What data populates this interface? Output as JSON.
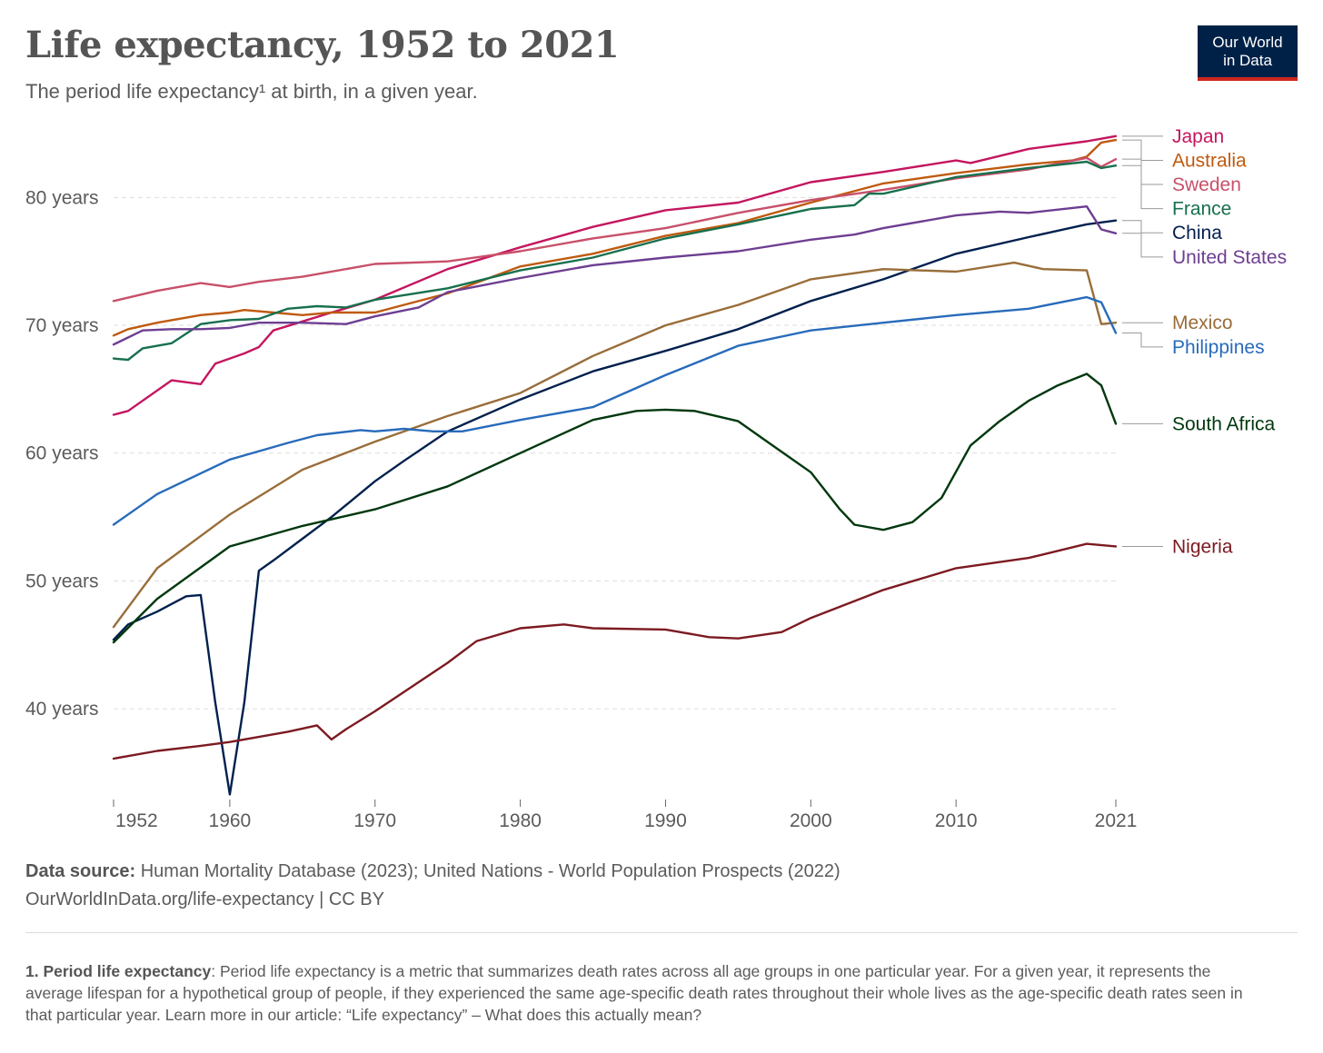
{
  "header": {
    "title": "Life expectancy, 1952 to 2021",
    "subtitle": "The period life expectancy¹ at birth, in a given year.",
    "logo_line1": "Our World",
    "logo_line2": "in Data"
  },
  "footer": {
    "source_label": "Data source:",
    "source_text": " Human Mortality Database (2023); United Nations - World Population Prospects (2022)",
    "url_text": "OurWorldInData.org/life-expectancy | CC BY",
    "footnote_label": "1. Period life expectancy",
    "footnote_text": ": Period life expectancy is a metric that summarizes death rates across all age groups in one particular year. For a given year, it represents the average lifespan for a hypothetical group of people, if they experienced the same age-specific death rates throughout their whole lives as the age-specific death rates seen in that particular year. Learn more in our article: “Life expectancy” – What does this actually mean?"
  },
  "colors": {
    "brand": "#002147",
    "brand_accent": "#ce261e",
    "grid": "#dddddd",
    "text": "#5b5b5b"
  },
  "chart_data": {
    "type": "line",
    "title": "Life expectancy, 1952 to 2021",
    "subtitle": "The period life expectancy¹ at birth, in a given year.",
    "xlim": [
      1952,
      2021
    ],
    "ylim": [
      32.9,
      85.5
    ],
    "x_ticks": [
      1952,
      1960,
      1970,
      1980,
      1990,
      2000,
      2010,
      2021
    ],
    "y_ticks": [
      {
        "value": 40,
        "label": "40 years"
      },
      {
        "value": 50,
        "label": "50 years"
      },
      {
        "value": 60,
        "label": "60 years"
      },
      {
        "value": 70,
        "label": "70 years"
      },
      {
        "value": 80,
        "label": "80 years"
      }
    ],
    "grid": "horizontal dashed",
    "legend": "line end labels (right)",
    "series": [
      {
        "name": "Japan",
        "color": "#c4165f",
        "points": [
          [
            1952,
            63
          ],
          [
            1953,
            63.3
          ],
          [
            1956,
            65.7
          ],
          [
            1958,
            65.4
          ],
          [
            1959,
            67
          ],
          [
            1961,
            67.8
          ],
          [
            1962,
            68.3
          ],
          [
            1963,
            69.6
          ],
          [
            1965,
            70.3
          ],
          [
            1967,
            71
          ],
          [
            1970,
            72
          ],
          [
            1975,
            74.4
          ],
          [
            1980,
            76.1
          ],
          [
            1985,
            77.7
          ],
          [
            1990,
            79
          ],
          [
            1995,
            79.6
          ],
          [
            2000,
            81.2
          ],
          [
            2005,
            82
          ],
          [
            2010,
            82.9
          ],
          [
            2011,
            82.7
          ],
          [
            2015,
            83.8
          ],
          [
            2019,
            84.4
          ],
          [
            2020,
            84.6
          ],
          [
            2021,
            84.8
          ]
        ]
      },
      {
        "name": "Australia",
        "color": "#bf5a0f",
        "points": [
          [
            1952,
            69.2
          ],
          [
            1953,
            69.7
          ],
          [
            1955,
            70.2
          ],
          [
            1958,
            70.8
          ],
          [
            1960,
            71
          ],
          [
            1961,
            71.2
          ],
          [
            1963,
            71
          ],
          [
            1965,
            70.8
          ],
          [
            1967,
            71
          ],
          [
            1970,
            71
          ],
          [
            1975,
            72.5
          ],
          [
            1980,
            74.6
          ],
          [
            1985,
            75.6
          ],
          [
            1990,
            77
          ],
          [
            1995,
            78
          ],
          [
            2000,
            79.6
          ],
          [
            2005,
            81.1
          ],
          [
            2010,
            81.9
          ],
          [
            2015,
            82.6
          ],
          [
            2018,
            82.9
          ],
          [
            2019,
            83.2
          ],
          [
            2020,
            84.3
          ],
          [
            2021,
            84.5
          ]
        ]
      },
      {
        "name": "Sweden",
        "color": "#c8506a",
        "points": [
          [
            1952,
            71.9
          ],
          [
            1955,
            72.7
          ],
          [
            1958,
            73.3
          ],
          [
            1960,
            73
          ],
          [
            1962,
            73.4
          ],
          [
            1965,
            73.8
          ],
          [
            1970,
            74.8
          ],
          [
            1975,
            75
          ],
          [
            1980,
            75.8
          ],
          [
            1985,
            76.8
          ],
          [
            1990,
            77.6
          ],
          [
            1995,
            78.8
          ],
          [
            2000,
            79.8
          ],
          [
            2005,
            80.6
          ],
          [
            2010,
            81.5
          ],
          [
            2015,
            82.2
          ],
          [
            2019,
            83.1
          ],
          [
            2020,
            82.4
          ],
          [
            2021,
            83
          ]
        ]
      },
      {
        "name": "France",
        "color": "#18704e",
        "points": [
          [
            1952,
            67.4
          ],
          [
            1953,
            67.3
          ],
          [
            1954,
            68.2
          ],
          [
            1956,
            68.6
          ],
          [
            1958,
            70.1
          ],
          [
            1960,
            70.4
          ],
          [
            1962,
            70.5
          ],
          [
            1964,
            71.3
          ],
          [
            1966,
            71.5
          ],
          [
            1968,
            71.4
          ],
          [
            1970,
            72
          ],
          [
            1975,
            72.9
          ],
          [
            1980,
            74.3
          ],
          [
            1985,
            75.3
          ],
          [
            1990,
            76.8
          ],
          [
            1995,
            77.9
          ],
          [
            2000,
            79.1
          ],
          [
            2003,
            79.4
          ],
          [
            2004,
            80.3
          ],
          [
            2005,
            80.3
          ],
          [
            2010,
            81.6
          ],
          [
            2015,
            82.3
          ],
          [
            2019,
            82.8
          ],
          [
            2020,
            82.3
          ],
          [
            2021,
            82.5
          ]
        ]
      },
      {
        "name": "China",
        "color": "#00204e",
        "points": [
          [
            1952,
            45.4
          ],
          [
            1953,
            46.6
          ],
          [
            1955,
            47.6
          ],
          [
            1957,
            48.8
          ],
          [
            1958,
            48.9
          ],
          [
            1959,
            40.5
          ],
          [
            1960,
            33.3
          ],
          [
            1961,
            40.5
          ],
          [
            1962,
            50.8
          ],
          [
            1963,
            51.6
          ],
          [
            1965,
            53.3
          ],
          [
            1967,
            55
          ],
          [
            1970,
            57.8
          ],
          [
            1972,
            59.4
          ],
          [
            1975,
            61.7
          ],
          [
            1980,
            64.2
          ],
          [
            1985,
            66.4
          ],
          [
            1990,
            68
          ],
          [
            1995,
            69.7
          ],
          [
            2000,
            71.9
          ],
          [
            2005,
            73.6
          ],
          [
            2010,
            75.6
          ],
          [
            2015,
            76.9
          ],
          [
            2019,
            77.9
          ],
          [
            2021,
            78.2
          ]
        ]
      },
      {
        "name": "United States",
        "color": "#6d3e91",
        "points": [
          [
            1952,
            68.5
          ],
          [
            1954,
            69.6
          ],
          [
            1956,
            69.7
          ],
          [
            1958,
            69.7
          ],
          [
            1960,
            69.8
          ],
          [
            1962,
            70.2
          ],
          [
            1965,
            70.2
          ],
          [
            1968,
            70.1
          ],
          [
            1970,
            70.7
          ],
          [
            1973,
            71.4
          ],
          [
            1975,
            72.6
          ],
          [
            1980,
            73.7
          ],
          [
            1985,
            74.7
          ],
          [
            1990,
            75.3
          ],
          [
            1995,
            75.8
          ],
          [
            2000,
            76.7
          ],
          [
            2003,
            77.1
          ],
          [
            2005,
            77.6
          ],
          [
            2010,
            78.6
          ],
          [
            2013,
            78.9
          ],
          [
            2015,
            78.8
          ],
          [
            2019,
            79.3
          ],
          [
            2020,
            77.5
          ],
          [
            2021,
            77.2
          ]
        ]
      },
      {
        "name": "Mexico",
        "color": "#996d39",
        "points": [
          [
            1952,
            46.4
          ],
          [
            1955,
            51
          ],
          [
            1960,
            55.2
          ],
          [
            1965,
            58.7
          ],
          [
            1970,
            60.9
          ],
          [
            1975,
            62.9
          ],
          [
            1980,
            64.7
          ],
          [
            1985,
            67.6
          ],
          [
            1990,
            70
          ],
          [
            1995,
            71.6
          ],
          [
            2000,
            73.6
          ],
          [
            2005,
            74.4
          ],
          [
            2010,
            74.2
          ],
          [
            2014,
            74.9
          ],
          [
            2016,
            74.4
          ],
          [
            2019,
            74.3
          ],
          [
            2020,
            70.1
          ],
          [
            2021,
            70.2
          ]
        ]
      },
      {
        "name": "Philippines",
        "color": "#286bbb",
        "points": [
          [
            1952,
            54.4
          ],
          [
            1955,
            56.8
          ],
          [
            1960,
            59.5
          ],
          [
            1964,
            60.8
          ],
          [
            1966,
            61.4
          ],
          [
            1969,
            61.8
          ],
          [
            1970,
            61.7
          ],
          [
            1972,
            61.9
          ],
          [
            1974,
            61.7
          ],
          [
            1976,
            61.7
          ],
          [
            1980,
            62.6
          ],
          [
            1985,
            63.6
          ],
          [
            1990,
            66.1
          ],
          [
            1995,
            68.4
          ],
          [
            2000,
            69.6
          ],
          [
            2005,
            70.2
          ],
          [
            2010,
            70.8
          ],
          [
            2015,
            71.3
          ],
          [
            2019,
            72.2
          ],
          [
            2020,
            71.8
          ],
          [
            2021,
            69.4
          ]
        ]
      },
      {
        "name": "South Africa",
        "color": "#00380e",
        "points": [
          [
            1952,
            45.2
          ],
          [
            1955,
            48.6
          ],
          [
            1960,
            52.7
          ],
          [
            1965,
            54.3
          ],
          [
            1970,
            55.6
          ],
          [
            1975,
            57.4
          ],
          [
            1980,
            60
          ],
          [
            1985,
            62.6
          ],
          [
            1988,
            63.3
          ],
          [
            1990,
            63.4
          ],
          [
            1992,
            63.3
          ],
          [
            1995,
            62.5
          ],
          [
            1997,
            60.9
          ],
          [
            2000,
            58.5
          ],
          [
            2002,
            55.6
          ],
          [
            2003,
            54.4
          ],
          [
            2005,
            54
          ],
          [
            2007,
            54.6
          ],
          [
            2009,
            56.5
          ],
          [
            2011,
            60.6
          ],
          [
            2013,
            62.5
          ],
          [
            2015,
            64.1
          ],
          [
            2017,
            65.3
          ],
          [
            2019,
            66.2
          ],
          [
            2020,
            65.3
          ],
          [
            2021,
            62.3
          ]
        ]
      },
      {
        "name": "Nigeria",
        "color": "#7c1a21",
        "points": [
          [
            1952,
            36.1
          ],
          [
            1955,
            36.7
          ],
          [
            1958,
            37.1
          ],
          [
            1960,
            37.4
          ],
          [
            1962,
            37.8
          ],
          [
            1964,
            38.2
          ],
          [
            1966,
            38.7
          ],
          [
            1967,
            37.6
          ],
          [
            1968,
            38.4
          ],
          [
            1970,
            39.8
          ],
          [
            1975,
            43.6
          ],
          [
            1977,
            45.3
          ],
          [
            1980,
            46.3
          ],
          [
            1983,
            46.6
          ],
          [
            1985,
            46.3
          ],
          [
            1990,
            46.2
          ],
          [
            1993,
            45.6
          ],
          [
            1995,
            45.5
          ],
          [
            1998,
            46
          ],
          [
            2000,
            47.1
          ],
          [
            2005,
            49.3
          ],
          [
            2010,
            51
          ],
          [
            2015,
            51.8
          ],
          [
            2019,
            52.9
          ],
          [
            2021,
            52.7
          ]
        ]
      }
    ]
  }
}
